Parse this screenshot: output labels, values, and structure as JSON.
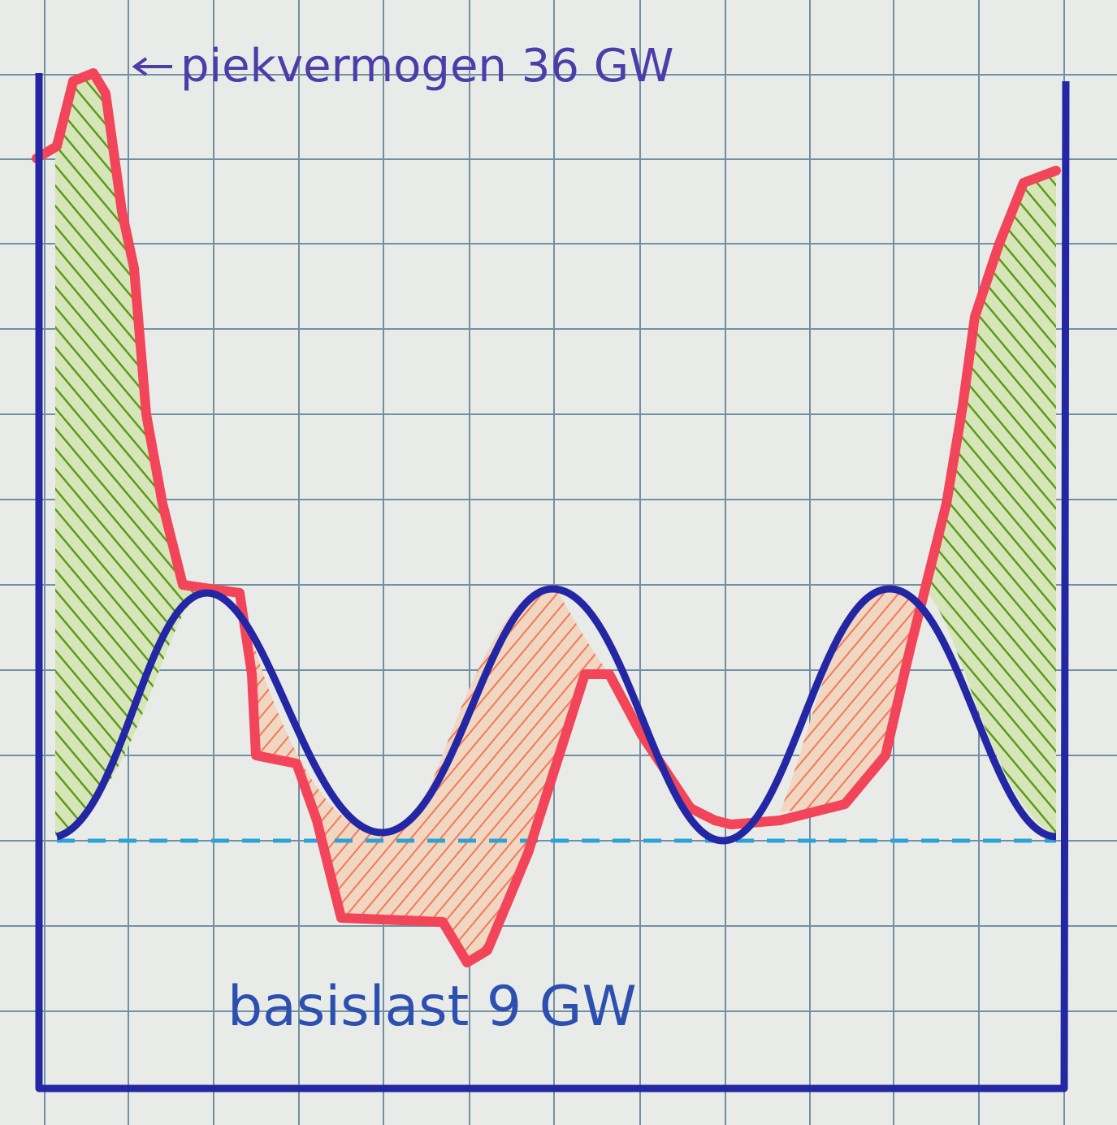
{
  "annotations": {
    "peak": "piekvermogen 36 GW",
    "base": "basislast 9 GW"
  }
}
